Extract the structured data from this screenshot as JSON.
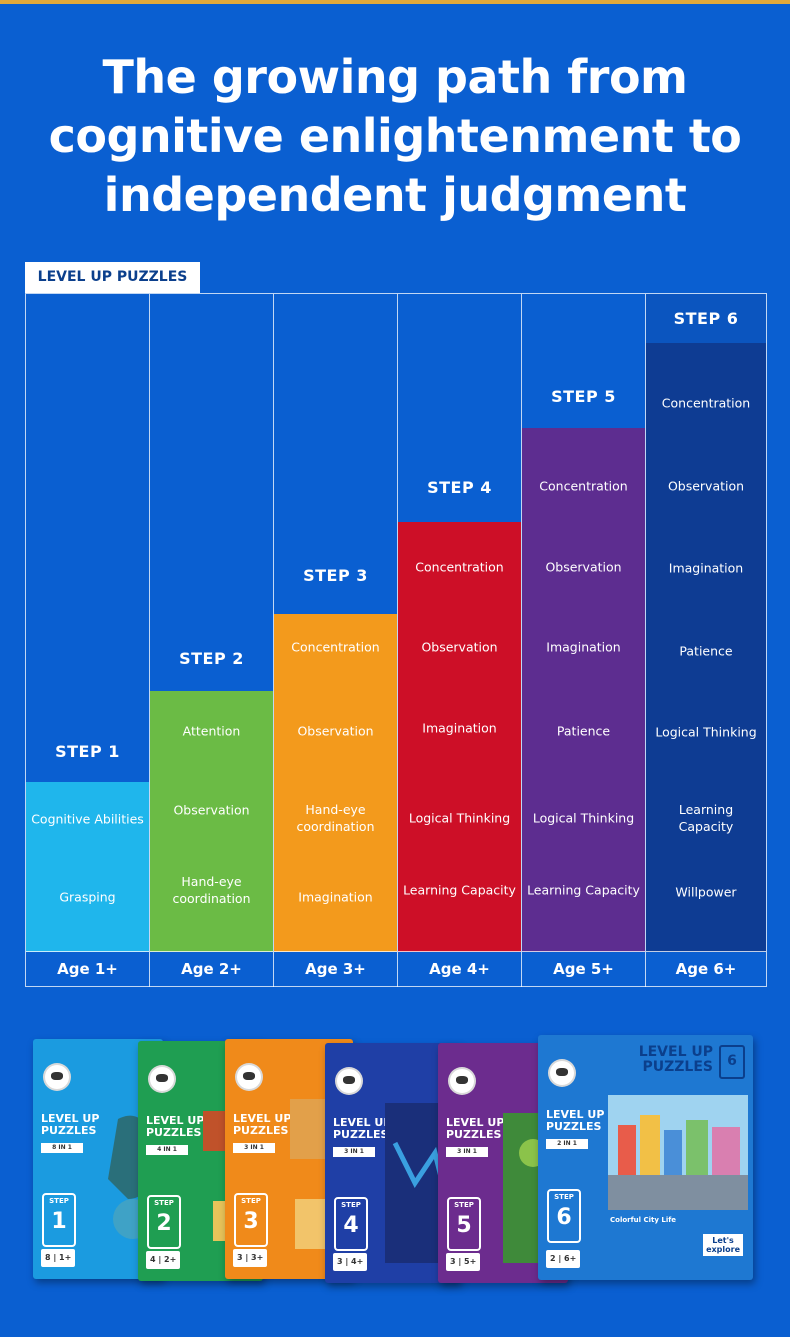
{
  "headline": {
    "line1": "The growing path from",
    "line2": "cognitive enlightenment to",
    "line3": "independent judgment"
  },
  "tag": "LEVEL UP PUZZLES",
  "colors": {
    "background": "#0a5fd1",
    "step1": "#1fb6ec",
    "step2": "#6bbb45",
    "step3": "#f39a1c",
    "step4": "#cd0f27",
    "step5": "#5d2d90",
    "step6": "#0e3c93"
  },
  "steps": [
    {
      "label": "STEP 1",
      "age": "Age 1+",
      "skills": [
        "Cognitive Abilities",
        "Grasping"
      ]
    },
    {
      "label": "STEP 2",
      "age": "Age 2+",
      "skills": [
        "Attention",
        "Observation",
        "Hand-eye coordination"
      ]
    },
    {
      "label": "STEP 3",
      "age": "Age 3+",
      "skills": [
        "Concentration",
        "Observation",
        "Hand-eye coordination",
        "Imagination"
      ]
    },
    {
      "label": "STEP 4",
      "age": "Age 4+",
      "skills": [
        "Concentration",
        "Observation",
        "Imagination",
        "Logical Thinking",
        "Learning Capacity"
      ]
    },
    {
      "label": "STEP 5",
      "age": "Age 5+",
      "skills": [
        "Concentration",
        "Observation",
        "Imagination",
        "Patience",
        "Logical Thinking",
        "Learning Capacity"
      ]
    },
    {
      "label": "STEP 6",
      "age": "Age 6+",
      "skills": [
        "Concentration",
        "Observation",
        "Imagination",
        "Patience",
        "Logical Thinking",
        "Learning Capacity",
        "Willpower"
      ]
    }
  ],
  "boxes": {
    "title_line1": "LEVEL UP",
    "title_line2": "PUZZLES",
    "step_word": "STEP",
    "items": [
      {
        "number": "1",
        "in_one": "8 IN 1",
        "age": "8 | 1+"
      },
      {
        "number": "2",
        "in_one": "4 IN 1",
        "age": "4 | 2+"
      },
      {
        "number": "3",
        "in_one": "3 IN 1",
        "age": "3 | 3+"
      },
      {
        "number": "4",
        "in_one": "3 IN 1",
        "age": "3 | 4+"
      },
      {
        "number": "5",
        "in_one": "3 IN 1",
        "age": "3 | 5+"
      },
      {
        "number": "6",
        "in_one": "2 IN 1",
        "age": "2 | 6+"
      }
    ],
    "box6_subtitle": "Colorful City Life",
    "lets_line1": "Let's",
    "lets_line2": "explore"
  }
}
